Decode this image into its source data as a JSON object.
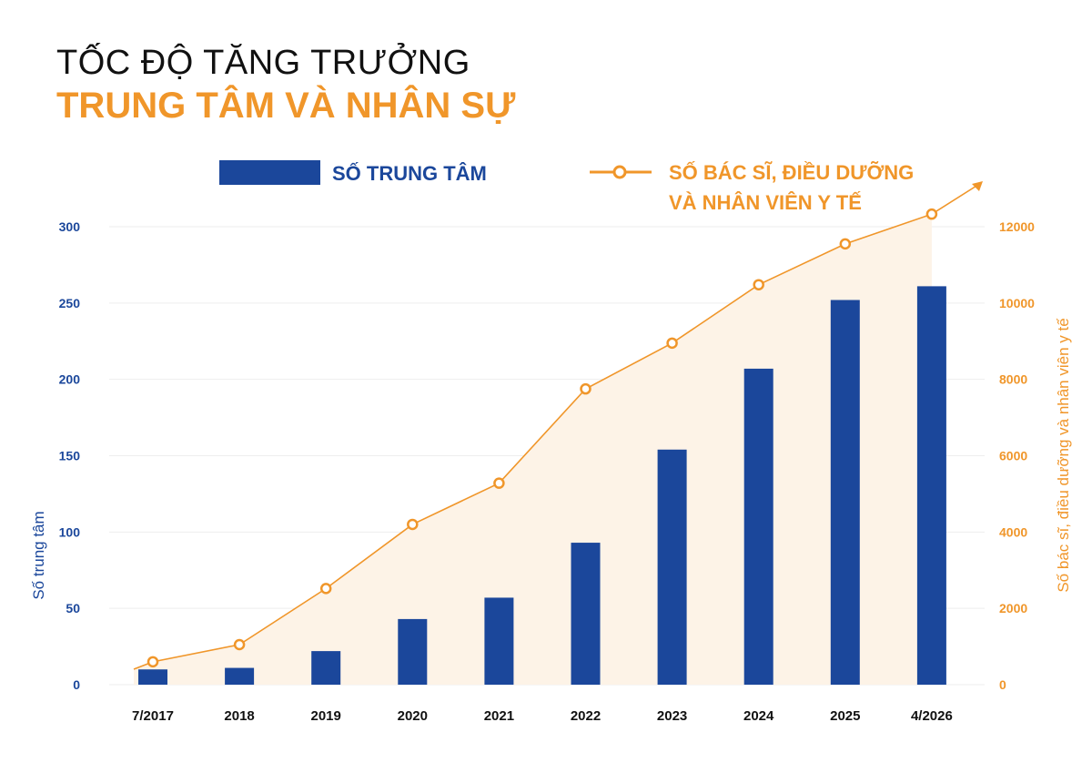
{
  "title_line1": "TỐC ĐỘ TĂNG TRƯỞNG",
  "title_line2": "TRUNG TÂM VÀ NHÂN SỰ",
  "colors": {
    "bar": "#1b479b",
    "line": "#f0962a",
    "area": "#fdf3e7",
    "grid": "#eeeeee"
  },
  "chart_data": {
    "type": "bar+line",
    "categories": [
      "7/2017",
      "2018",
      "2019",
      "2020",
      "2021",
      "2022",
      "2023",
      "2024",
      "2025",
      "4/2026"
    ],
    "series": [
      {
        "name": "SỐ TRUNG TÂM",
        "type": "bar",
        "axis": "left",
        "values": [
          10,
          11,
          22,
          43,
          57,
          93,
          154,
          207,
          252,
          261
        ]
      },
      {
        "name": "SỐ BÁC SĨ, ĐIỀU DƯỠNG VÀ NHÂN VIÊN Y TẾ",
        "legend_lines": [
          "SỐ BÁC SĨ, ĐIỀU DƯỠNG",
          "VÀ NHÂN VIÊN Y TẾ"
        ],
        "type": "line",
        "axis": "right",
        "values": [
          600,
          1050,
          2520,
          4200,
          5280,
          7750,
          8950,
          10480,
          11550,
          12330
        ]
      }
    ],
    "ylabel_left": "Số trung tâm",
    "ylabel_right": "Số bác sĩ, điều dưỡng và nhân viên y tế",
    "ylim_left": [
      0,
      300
    ],
    "yticks_left": [
      "0",
      "50",
      "100",
      "150",
      "200",
      "250",
      "300"
    ],
    "ylim_right": [
      0,
      12000
    ],
    "yticks_right": [
      "0",
      "2000",
      "4000",
      "6000",
      "8000",
      "10000",
      "12000"
    ],
    "grid": true,
    "legend_position": "top"
  }
}
